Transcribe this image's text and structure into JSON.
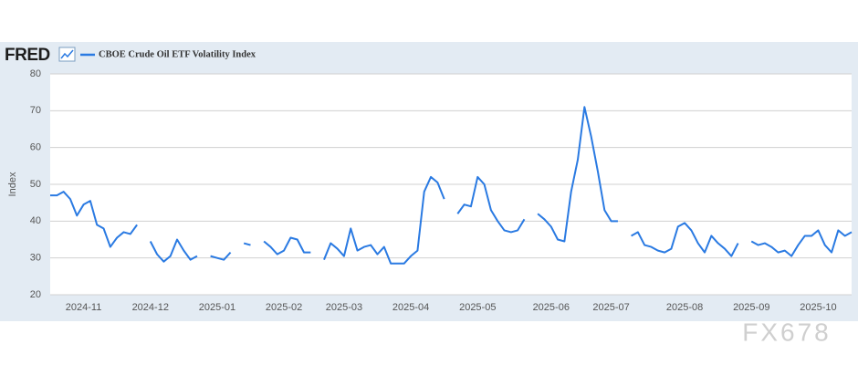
{
  "chart_data": {
    "type": "line",
    "brand": "FRED",
    "y_label": "Index",
    "watermark": "FX678",
    "categories": [
      null,
      null,
      null,
      null,
      null,
      "2024-11",
      null,
      null,
      null,
      null,
      null,
      null,
      null,
      null,
      null,
      "2024-12",
      null,
      null,
      null,
      null,
      null,
      null,
      null,
      null,
      null,
      "2025-01",
      null,
      null,
      null,
      null,
      null,
      null,
      null,
      null,
      null,
      "2025-02",
      null,
      null,
      null,
      null,
      null,
      null,
      null,
      null,
      "2025-03",
      null,
      null,
      null,
      null,
      null,
      null,
      null,
      null,
      null,
      "2025-04",
      null,
      null,
      null,
      null,
      null,
      null,
      null,
      null,
      null,
      "2025-05",
      null,
      null,
      null,
      null,
      null,
      null,
      null,
      null,
      null,
      null,
      "2025-06",
      null,
      null,
      null,
      null,
      null,
      null,
      null,
      null,
      "2025-07",
      null,
      null,
      null,
      null,
      null,
      null,
      null,
      null,
      null,
      null,
      "2025-08",
      null,
      null,
      null,
      null,
      null,
      null,
      null,
      null,
      null,
      "2025-09",
      null,
      null,
      null,
      null,
      null,
      null,
      null,
      null,
      null,
      "2025-10",
      null,
      null,
      null,
      null,
      null
    ],
    "series": [
      {
        "name": "CBOE Crude Oil ETF Volatility Index",
        "color": "#2a7ae2",
        "values": [
          47,
          47,
          48,
          46,
          41.5,
          44.5,
          45.5,
          39,
          38,
          33,
          35.5,
          37,
          36.5,
          39,
          null,
          34.5,
          31,
          29,
          30.5,
          35,
          32,
          29.5,
          30.5,
          null,
          30.5,
          30,
          29.5,
          31.5,
          null,
          34,
          33.5,
          null,
          34.5,
          33,
          31,
          32,
          35.5,
          35,
          31.5,
          31.5,
          null,
          29.5,
          34,
          32.5,
          30.5,
          38,
          32,
          33,
          33.5,
          31,
          33,
          28.5,
          28.5,
          28.5,
          30.5,
          32,
          48,
          52,
          50.5,
          46,
          null,
          42,
          44.5,
          44,
          52,
          50,
          43,
          40,
          37.5,
          37,
          37.5,
          40.5,
          null,
          42,
          40.5,
          38.5,
          35,
          34.5,
          48,
          56.7,
          71,
          63,
          53.5,
          43,
          40,
          40,
          null,
          36,
          37,
          33.5,
          33,
          32,
          31.5,
          32.5,
          38.5,
          39.5,
          37.5,
          34,
          31.5,
          36,
          34,
          32.5,
          30.5,
          34,
          null,
          34.5,
          33.5,
          34,
          33,
          31.5,
          32,
          30.5,
          33.5,
          36,
          36,
          37.5,
          33.5,
          31.5,
          37.5,
          36,
          37
        ]
      }
    ],
    "ylim": [
      20,
      80
    ],
    "yticks": [
      20,
      30,
      40,
      50,
      60,
      70,
      80
    ],
    "grid": true
  }
}
